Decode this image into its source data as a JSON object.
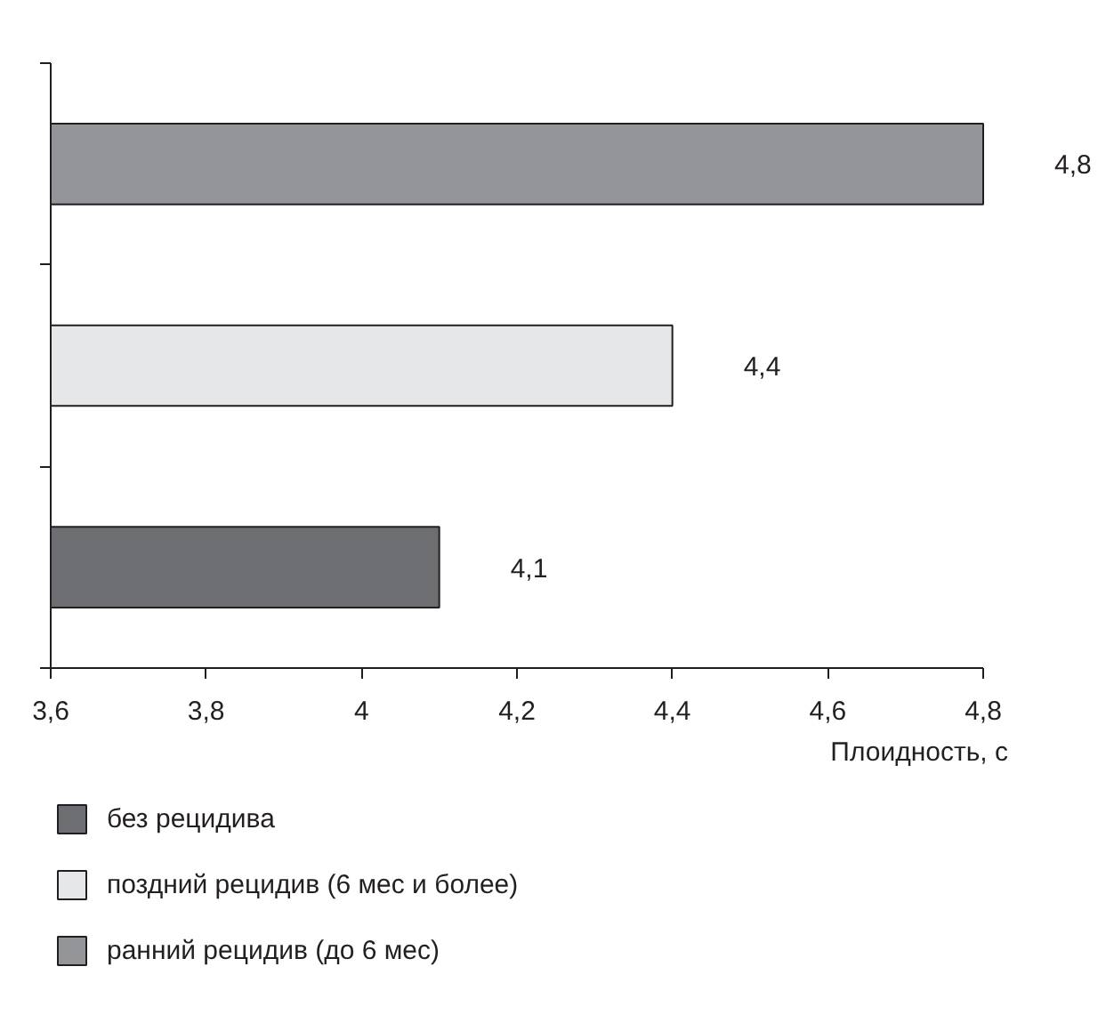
{
  "chart_data": {
    "type": "bar",
    "orientation": "horizontal",
    "categories": [
      null,
      null,
      null
    ],
    "series": [
      {
        "name": "без рецидива",
        "color": "#6d6e71",
        "values": [
          null,
          null,
          4.1
        ],
        "value_labels": [
          null,
          null,
          "4,1"
        ]
      },
      {
        "name": "поздний рецидив (6 мес и более)",
        "color": "#e6e7e8",
        "values": [
          null,
          4.4,
          null
        ],
        "value_labels": [
          null,
          "4,4",
          null
        ]
      },
      {
        "name": "ранний рецидив (до 6 мес)",
        "color": "#939598",
        "values": [
          4.8,
          null,
          null
        ],
        "value_labels": [
          "4,8",
          null,
          null
        ]
      }
    ],
    "xlabel": "Плоидность, с",
    "xlim": [
      3.6,
      4.8
    ],
    "xticks": [
      {
        "value": 3.6,
        "label": "3,6"
      },
      {
        "value": 3.8,
        "label": "3,8"
      },
      4,
      {
        "value": 4.2,
        "label": "4,2"
      },
      {
        "value": 4.4,
        "label": "4,4"
      },
      {
        "value": 4.6,
        "label": "4,6"
      },
      {
        "value": 4.8,
        "label": "4,8"
      }
    ],
    "legend": "bottom",
    "tick_labels": "x"
  }
}
